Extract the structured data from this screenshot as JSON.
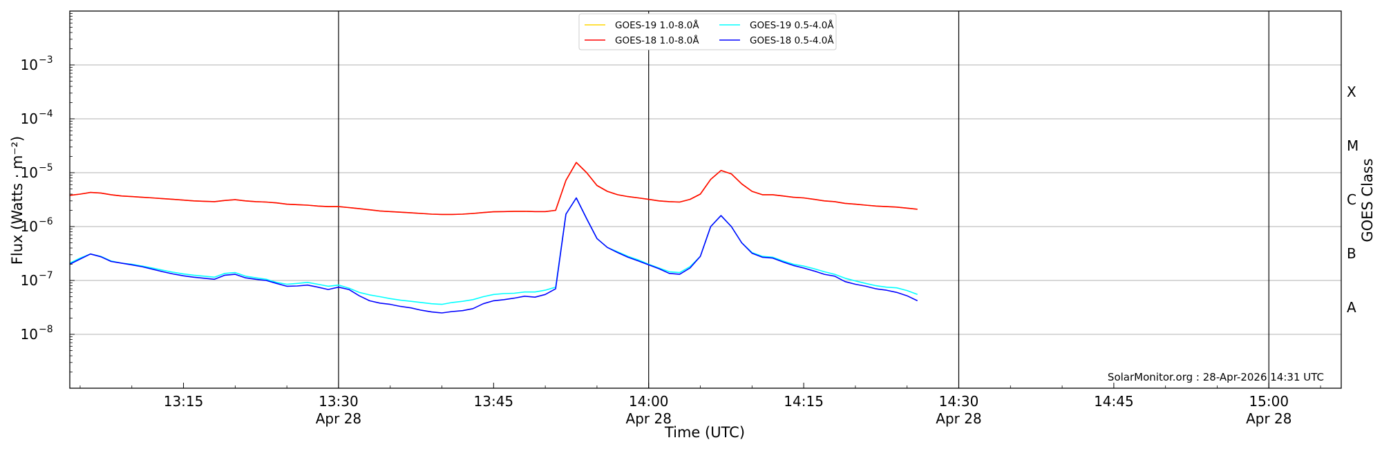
{
  "chart_data": {
    "type": "line",
    "ylabel": "Flux (Watts · m⁻²)",
    "xlabel": "Time (UTC)",
    "right_label": "GOES Class",
    "credit": "SolarMonitor.org : 28-Apr-2026 14:31 UTC",
    "y_scale": "log",
    "ylim": [
      1e-09,
      0.01
    ],
    "xlim": [
      "13:04",
      "15:07"
    ],
    "grid": "horizontal at decades",
    "legend_position": "top-center",
    "y_ticks": [
      {
        "value": 1e-08,
        "label": "10",
        "exp": "−8"
      },
      {
        "value": 1e-07,
        "label": "10",
        "exp": "−7"
      },
      {
        "value": 1e-06,
        "label": "10",
        "exp": "−6"
      },
      {
        "value": 1e-05,
        "label": "10",
        "exp": "−5"
      },
      {
        "value": 0.0001,
        "label": "10",
        "exp": "−4"
      },
      {
        "value": 0.001,
        "label": "10",
        "exp": "−3"
      }
    ],
    "x_ticks": [
      {
        "time": "13:15",
        "label": "13:15",
        "sub": ""
      },
      {
        "time": "13:30",
        "label": "13:30",
        "sub": "Apr 28"
      },
      {
        "time": "13:45",
        "label": "13:45",
        "sub": ""
      },
      {
        "time": "14:00",
        "label": "14:00",
        "sub": "Apr 28"
      },
      {
        "time": "14:15",
        "label": "14:15",
        "sub": ""
      },
      {
        "time": "14:30",
        "label": "14:30",
        "sub": "Apr 28"
      },
      {
        "time": "14:45",
        "label": "14:45",
        "sub": ""
      },
      {
        "time": "15:00",
        "label": "15:00",
        "sub": "Apr 28"
      }
    ],
    "vertical_lines": [
      "13:30",
      "14:00",
      "14:30",
      "15:00"
    ],
    "goes_classes": [
      {
        "label": "A",
        "value": 3.16e-08
      },
      {
        "label": "B",
        "value": 3.16e-07
      },
      {
        "label": "C",
        "value": 3.16e-06
      },
      {
        "label": "M",
        "value": 3.16e-05
      },
      {
        "label": "X",
        "value": 0.000316
      }
    ],
    "legend": [
      {
        "label": "GOES-19 1.0-8.0Å",
        "color": "#ffd700"
      },
      {
        "label": "GOES-19 0.5-4.0Å",
        "color": "#00ffff"
      },
      {
        "label": "GOES-18 1.0-8.0Å",
        "color": "#ff0000"
      },
      {
        "label": "GOES-18 0.5-4.0Å",
        "color": "#0000ff"
      }
    ],
    "x": [
      "13:04",
      "13:05",
      "13:06",
      "13:07",
      "13:08",
      "13:09",
      "13:10",
      "13:11",
      "13:12",
      "13:13",
      "13:14",
      "13:15",
      "13:16",
      "13:17",
      "13:18",
      "13:19",
      "13:20",
      "13:21",
      "13:22",
      "13:23",
      "13:24",
      "13:25",
      "13:26",
      "13:27",
      "13:28",
      "13:29",
      "13:30",
      "13:31",
      "13:32",
      "13:33",
      "13:34",
      "13:35",
      "13:36",
      "13:37",
      "13:38",
      "13:39",
      "13:40",
      "13:41",
      "13:42",
      "13:43",
      "13:44",
      "13:45",
      "13:46",
      "13:47",
      "13:48",
      "13:49",
      "13:50",
      "13:51",
      "13:52",
      "13:53",
      "13:54",
      "13:55",
      "13:56",
      "13:57",
      "13:58",
      "13:59",
      "14:00",
      "14:01",
      "14:02",
      "14:03",
      "14:04",
      "14:05",
      "14:06",
      "14:07",
      "14:08",
      "14:09",
      "14:10",
      "14:11",
      "14:12",
      "14:13",
      "14:14",
      "14:15",
      "14:16",
      "14:17",
      "14:18",
      "14:19",
      "14:20",
      "14:21",
      "14:22",
      "14:23",
      "14:24",
      "14:25",
      "14:26"
    ],
    "series": [
      {
        "name": "GOES-19 1.0-8.0Å",
        "color": "#ffd700",
        "values": [
          3.8e-06,
          4e-06,
          4.3e-06,
          4.2e-06,
          3.9e-06,
          3.7e-06,
          3.6e-06,
          3.5e-06,
          3.4e-06,
          3.3e-06,
          3.2e-06,
          3.1e-06,
          3e-06,
          2.95e-06,
          2.9e-06,
          3.05e-06,
          3.15e-06,
          3e-06,
          2.9e-06,
          2.85e-06,
          2.75e-06,
          2.6e-06,
          2.55e-06,
          2.5e-06,
          2.4e-06,
          2.35e-06,
          2.35e-06,
          2.25e-06,
          2.15e-06,
          2.05e-06,
          1.95e-06,
          1.9e-06,
          1.85e-06,
          1.8e-06,
          1.75e-06,
          1.7e-06,
          1.68e-06,
          1.68e-06,
          1.7e-06,
          1.75e-06,
          1.82e-06,
          1.88e-06,
          1.9e-06,
          1.92e-06,
          1.92e-06,
          1.9e-06,
          1.9e-06,
          2e-06,
          7.2e-06,
          1.55e-05,
          1e-05,
          5.8e-06,
          4.5e-06,
          3.9e-06,
          3.6e-06,
          3.4e-06,
          3.2e-06,
          3e-06,
          2.9e-06,
          2.85e-06,
          3.2e-06,
          4e-06,
          7.5e-06,
          1.1e-05,
          9.5e-06,
          6.2e-06,
          4.5e-06,
          3.9e-06,
          3.9e-06,
          3.7e-06,
          3.5e-06,
          3.4e-06,
          3.2e-06,
          3e-06,
          2.9e-06,
          2.7e-06,
          2.6e-06,
          2.5e-06,
          2.4e-06,
          2.35e-06,
          2.3e-06,
          2.2e-06,
          2.1e-06
        ]
      },
      {
        "name": "GOES-18 1.0-8.0Å",
        "color": "#ff0000",
        "values": [
          3.8e-06,
          4e-06,
          4.3e-06,
          4.2e-06,
          3.9e-06,
          3.7e-06,
          3.6e-06,
          3.5e-06,
          3.4e-06,
          3.3e-06,
          3.2e-06,
          3.1e-06,
          3e-06,
          2.95e-06,
          2.9e-06,
          3.05e-06,
          3.15e-06,
          3e-06,
          2.9e-06,
          2.85e-06,
          2.75e-06,
          2.6e-06,
          2.55e-06,
          2.5e-06,
          2.4e-06,
          2.35e-06,
          2.35e-06,
          2.25e-06,
          2.15e-06,
          2.05e-06,
          1.95e-06,
          1.9e-06,
          1.85e-06,
          1.8e-06,
          1.75e-06,
          1.7e-06,
          1.68e-06,
          1.68e-06,
          1.7e-06,
          1.75e-06,
          1.82e-06,
          1.88e-06,
          1.9e-06,
          1.92e-06,
          1.92e-06,
          1.9e-06,
          1.9e-06,
          2e-06,
          7.2e-06,
          1.55e-05,
          1e-05,
          5.8e-06,
          4.5e-06,
          3.9e-06,
          3.6e-06,
          3.4e-06,
          3.2e-06,
          3e-06,
          2.9e-06,
          2.85e-06,
          3.2e-06,
          4e-06,
          7.5e-06,
          1.1e-05,
          9.5e-06,
          6.2e-06,
          4.5e-06,
          3.9e-06,
          3.9e-06,
          3.7e-06,
          3.5e-06,
          3.4e-06,
          3.2e-06,
          3e-06,
          2.9e-06,
          2.7e-06,
          2.6e-06,
          2.5e-06,
          2.4e-06,
          2.35e-06,
          2.3e-06,
          2.2e-06,
          2.1e-06
        ]
      },
      {
        "name": "GOES-19 0.5-4.0Å",
        "color": "#00ffff",
        "values": [
          2.1e-07,
          2.6e-07,
          3.1e-07,
          2.8e-07,
          2.3e-07,
          2.1e-07,
          2e-07,
          1.85e-07,
          1.7e-07,
          1.55e-07,
          1.42e-07,
          1.32e-07,
          1.25e-07,
          1.2e-07,
          1.15e-07,
          1.35e-07,
          1.4e-07,
          1.2e-07,
          1.12e-07,
          1.05e-07,
          9.2e-08,
          8.5e-08,
          8.8e-08,
          9.2e-08,
          8.5e-08,
          7.8e-08,
          8.2e-08,
          7.2e-08,
          6e-08,
          5.4e-08,
          5e-08,
          4.6e-08,
          4.3e-08,
          4.1e-08,
          3.9e-08,
          3.7e-08,
          3.6e-08,
          3.9e-08,
          4.1e-08,
          4.4e-08,
          5e-08,
          5.5e-08,
          5.7e-08,
          5.8e-08,
          6.1e-08,
          6.1e-08,
          6.6e-08,
          7.5e-08,
          1.7e-06,
          3.4e-06,
          1.4e-06,
          6e-07,
          4.1e-07,
          3.4e-07,
          2.8e-07,
          2.4e-07,
          2e-07,
          1.7e-07,
          1.45e-07,
          1.4e-07,
          1.8e-07,
          2.8e-07,
          1e-06,
          1.6e-06,
          1e-06,
          5e-07,
          3.3e-07,
          2.8e-07,
          2.7e-07,
          2.3e-07,
          2e-07,
          1.85e-07,
          1.65e-07,
          1.45e-07,
          1.3e-07,
          1.1e-07,
          9.8e-08,
          8.8e-08,
          8e-08,
          7.5e-08,
          7.3e-08,
          6.5e-08,
          5.5e-08
        ]
      },
      {
        "name": "GOES-18 0.5-4.0Å",
        "color": "#0000ff",
        "values": [
          2e-07,
          2.5e-07,
          3.1e-07,
          2.75e-07,
          2.25e-07,
          2.1e-07,
          1.95e-07,
          1.8e-07,
          1.62e-07,
          1.45e-07,
          1.32e-07,
          1.22e-07,
          1.15e-07,
          1.1e-07,
          1.05e-07,
          1.25e-07,
          1.3e-07,
          1.12e-07,
          1.05e-07,
          1e-07,
          8.8e-08,
          7.8e-08,
          7.9e-08,
          8.2e-08,
          7.5e-08,
          6.8e-08,
          7.5e-08,
          6.8e-08,
          5.2e-08,
          4.2e-08,
          3.8e-08,
          3.6e-08,
          3.3e-08,
          3.1e-08,
          2.8e-08,
          2.6e-08,
          2.5e-08,
          2.65e-08,
          2.75e-08,
          3e-08,
          3.7e-08,
          4.2e-08,
          4.4e-08,
          4.7e-08,
          5.1e-08,
          4.9e-08,
          5.5e-08,
          7e-08,
          1.7e-06,
          3.4e-06,
          1.4e-06,
          6e-07,
          4.1e-07,
          3.3e-07,
          2.7e-07,
          2.3e-07,
          1.95e-07,
          1.65e-07,
          1.35e-07,
          1.3e-07,
          1.7e-07,
          2.8e-07,
          1e-06,
          1.6e-06,
          1e-06,
          5e-07,
          3.2e-07,
          2.7e-07,
          2.6e-07,
          2.2e-07,
          1.9e-07,
          1.7e-07,
          1.5e-07,
          1.3e-07,
          1.2e-07,
          9.5e-08,
          8.5e-08,
          7.8e-08,
          7e-08,
          6.6e-08,
          6e-08,
          5.2e-08,
          4.2e-08
        ]
      }
    ]
  }
}
